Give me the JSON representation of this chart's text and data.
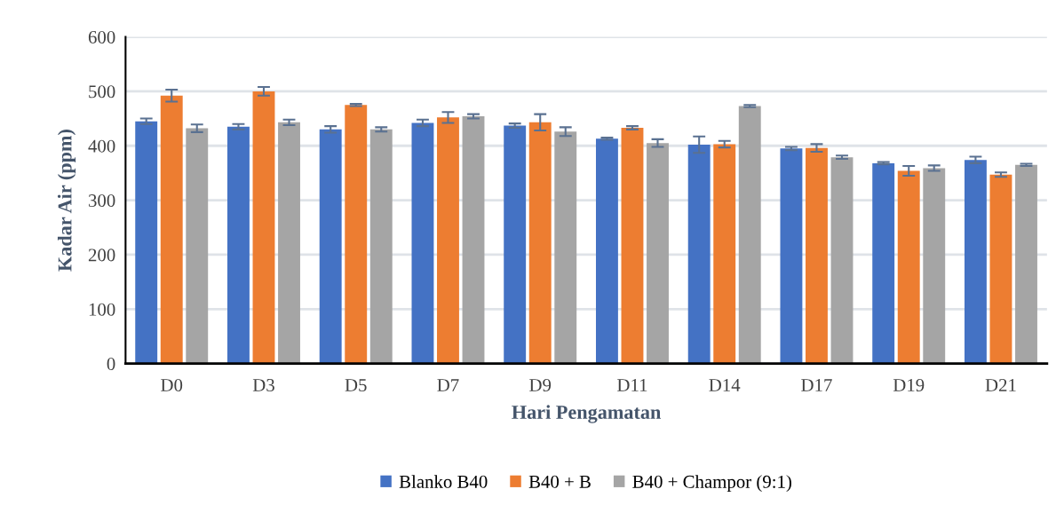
{
  "chart_data": {
    "type": "bar",
    "xlabel": "Hari Pengamatan",
    "ylabel": "Kadar Air (ppm)",
    "categories": [
      "D0",
      "D3",
      "D5",
      "D7",
      "D9",
      "D11",
      "D14",
      "D17",
      "D19",
      "D21"
    ],
    "series": [
      {
        "name": "Blanko B40",
        "color": "#4472c4",
        "values": [
          445,
          435,
          430,
          442,
          437,
          413,
          402,
          395,
          368,
          374
        ],
        "errors": [
          5,
          5,
          6,
          6,
          4,
          2,
          15,
          3,
          2,
          6
        ]
      },
      {
        "name": "B40 + B",
        "color": "#ed7d31",
        "values": [
          492,
          500,
          475,
          452,
          443,
          433,
          403,
          396,
          354,
          347
        ],
        "errors": [
          11,
          8,
          2,
          10,
          15,
          3,
          6,
          7,
          9,
          4
        ]
      },
      {
        "name": "B40 + Champor (9:1)",
        "color": "#a5a5a5",
        "values": [
          432,
          443,
          430,
          454,
          426,
          405,
          473,
          379,
          359,
          365
        ],
        "errors": [
          7,
          5,
          4,
          4,
          8,
          7,
          2,
          3,
          5,
          2
        ]
      }
    ],
    "ylim": [
      0,
      600
    ],
    "yticks": [
      0,
      100,
      200,
      300,
      400,
      500,
      600
    ],
    "grid": "y",
    "legend": "bottom"
  }
}
